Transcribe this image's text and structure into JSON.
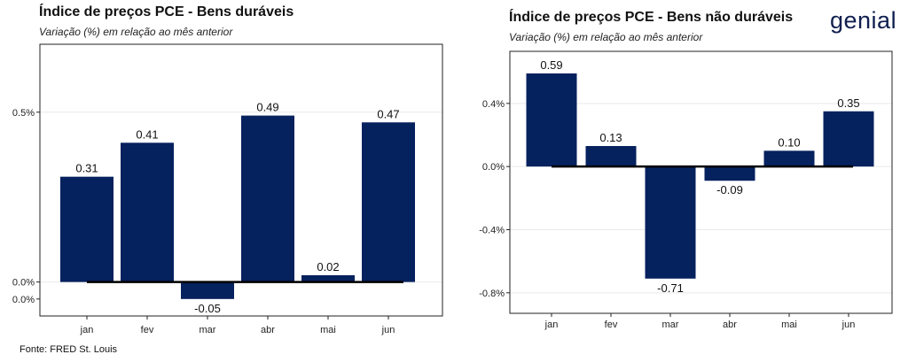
{
  "brand": {
    "logo_text": "genial"
  },
  "footer": {
    "source": "Fonte: FRED St. Louis"
  },
  "colors": {
    "bar": "#05215E",
    "zero_line": "#000000",
    "grid": "#e9e9e9",
    "frame": "#222222"
  },
  "chart_data": [
    {
      "type": "bar",
      "title": "Índice de preços PCE - Bens duráveis",
      "subtitle": "Variação (%) em relação ao mês anterior",
      "categories": [
        "jan",
        "fev",
        "mar",
        "abr",
        "mai",
        "jun"
      ],
      "values": [
        0.31,
        0.41,
        -0.05,
        0.49,
        0.02,
        0.47
      ],
      "data_labels": [
        "0.31",
        "0.41",
        "-0.05",
        "0.49",
        "0.02",
        "0.47"
      ],
      "yticks": [
        0.0,
        0.5
      ],
      "ytick_labels": [
        "0.0%",
        "0.5%"
      ],
      "ylim": [
        -0.1,
        0.7
      ],
      "extra_tick_labels": [
        {
          "label": "0.0%",
          "value": -0.05
        }
      ],
      "grid": true,
      "legend": "none"
    },
    {
      "type": "bar",
      "title": "Índice de preços PCE - Bens não duráveis",
      "subtitle": "Variação (%) em relação ao mês anterior",
      "categories": [
        "jan",
        "fev",
        "mar",
        "abr",
        "mai",
        "jun"
      ],
      "values": [
        0.59,
        0.13,
        -0.71,
        -0.09,
        0.1,
        0.35
      ],
      "data_labels": [
        "0.59",
        "0.13",
        "-0.71",
        "-0.09",
        "0.10",
        "0.35"
      ],
      "yticks": [
        -0.8,
        -0.4,
        0.0,
        0.4
      ],
      "ytick_labels": [
        "-0.8%",
        "-0.4%",
        "0.0%",
        "0.4%"
      ],
      "ylim": [
        -0.93,
        0.73
      ],
      "grid": true,
      "legend": "none"
    }
  ]
}
